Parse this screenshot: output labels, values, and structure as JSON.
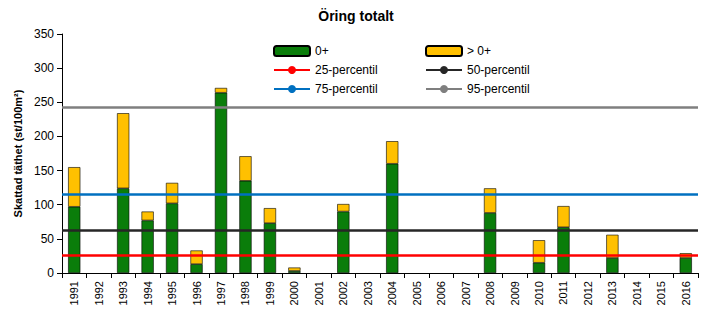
{
  "chart_data": {
    "type": "bar",
    "title": "Öring totalt",
    "y_label": "Skattad täthet (st/100m²)",
    "categories": [
      "1991",
      "1992",
      "1993",
      "1994",
      "1995",
      "1996",
      "1997",
      "1998",
      "1999",
      "2000",
      "2001",
      "2002",
      "2003",
      "2004",
      "2005",
      "2006",
      "2007",
      "2008",
      "2009",
      "2010",
      "2011",
      "2012",
      "2013",
      "2014",
      "2015",
      "2016"
    ],
    "series": [
      {
        "name": "0+",
        "color": "#0a7d0a",
        "values": [
          97,
          null,
          124,
          77,
          102,
          13,
          264,
          135,
          73,
          3,
          null,
          90,
          null,
          160,
          null,
          null,
          null,
          88,
          null,
          15,
          67,
          null,
          22,
          null,
          null,
          22
        ]
      },
      {
        "name": "> 0+",
        "color": "#ffc000",
        "values": [
          58,
          null,
          110,
          13,
          30,
          20,
          7,
          36,
          22,
          5,
          null,
          11,
          null,
          33,
          null,
          null,
          null,
          36,
          null,
          33,
          31,
          null,
          34,
          null,
          null,
          7
        ]
      }
    ],
    "reference_lines": [
      {
        "name": "25-percentil",
        "value": 26,
        "color": "#ff0000"
      },
      {
        "name": "50-percentil",
        "value": 63,
        "color": "#262626"
      },
      {
        "name": "75-percentil",
        "value": 116,
        "color": "#0070c0"
      },
      {
        "name": "95-percentil",
        "value": 243,
        "color": "#7f7f7f"
      }
    ],
    "ylim": [
      0,
      350
    ],
    "yticks": [
      0,
      50,
      100,
      150,
      200,
      250,
      300,
      350
    ],
    "stacked": true,
    "grid": false
  }
}
